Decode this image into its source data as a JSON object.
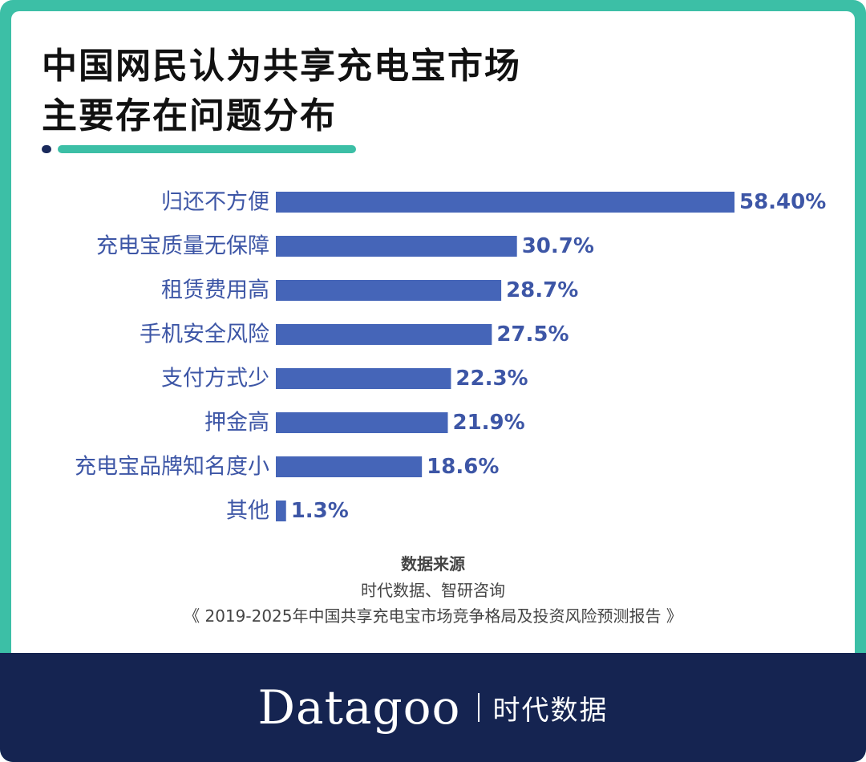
{
  "chart_data": {
    "type": "bar",
    "orientation": "horizontal",
    "title_lines": [
      "中国网民认为共享充电宝市场",
      "主要存在问题分布"
    ],
    "categories": [
      "归还不方便",
      "充电宝质量无保障",
      "租赁费用高",
      "手机安全风险",
      "支付方式少",
      "押金高",
      "充电宝品牌知名度小",
      "其他"
    ],
    "values": [
      58.4,
      30.7,
      28.7,
      27.5,
      22.3,
      21.9,
      18.6,
      1.3
    ],
    "value_labels": [
      "58.40%",
      "30.7%",
      "28.7%",
      "27.5%",
      "22.3%",
      "21.9%",
      "18.6%",
      "1.3%"
    ],
    "xlim": [
      0,
      62
    ],
    "grid": false,
    "legend": "none",
    "bar_color": "#4565b8",
    "label_color": "#3d56a6"
  },
  "source": {
    "heading": "数据来源",
    "line1": "时代数据、智研咨询",
    "line2": "《 2019-2025年中国共享充电宝市场竞争格局及投资风险预测报告 》"
  },
  "footer": {
    "brand": "Datagoo",
    "brand_cn": "时代数据"
  },
  "colors": {
    "accent": "#3cbfa6",
    "navy": "#152451"
  }
}
